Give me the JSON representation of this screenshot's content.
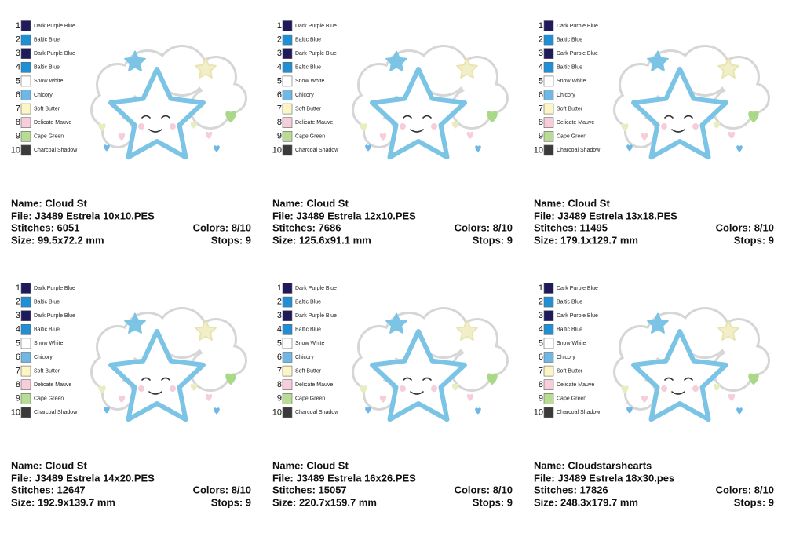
{
  "palette": [
    {
      "number": 1,
      "name": "Dark Purple Blue",
      "color": "#1f1a5c"
    },
    {
      "number": 2,
      "name": "Baltic Blue",
      "color": "#1f8fd6"
    },
    {
      "number": 3,
      "name": "Dark Purple Blue",
      "color": "#1f1a5c"
    },
    {
      "number": 4,
      "name": "Baltic Blue",
      "color": "#1f8fd6"
    },
    {
      "number": 5,
      "name": "Snow White",
      "color": "#ffffff"
    },
    {
      "number": 6,
      "name": "Chicory",
      "color": "#6fb8e6"
    },
    {
      "number": 7,
      "name": "Soft Butter",
      "color": "#fbf6c4"
    },
    {
      "number": 8,
      "name": "Delicate Mauve",
      "color": "#f6cdd8"
    },
    {
      "number": 9,
      "name": "Cape Green",
      "color": "#b8dc94"
    },
    {
      "number": 10,
      "name": "Charcoal Shadow",
      "color": "#3a3a3a"
    }
  ],
  "panels": [
    {
      "name": "Name: Cloud St",
      "file": "File: J3489 Estrela 10x10.PES",
      "stitches": "Stitches: 6051",
      "colors": "Colors: 8/10",
      "size": "Size: 99.5x72.2 mm",
      "stops": "Stops: 9"
    },
    {
      "name": "Name: Cloud St",
      "file": "File: J3489 Estrela 12x10.PES",
      "stitches": "Stitches: 7686",
      "colors": "Colors: 8/10",
      "size": "Size: 125.6x91.1 mm",
      "stops": "Stops: 9"
    },
    {
      "name": "Name: Cloud St",
      "file": "File: J3489 Estrela 13x18.PES",
      "stitches": "Stitches: 11495",
      "colors": "Colors: 8/10",
      "size": "Size: 179.1x129.7 mm",
      "stops": "Stops: 9"
    },
    {
      "name": "Name: Cloud St",
      "file": "File: J3489 Estrela 14x20.PES",
      "stitches": "Stitches: 12647",
      "colors": "Colors: 8/10",
      "size": "Size: 192.9x139.7 mm",
      "stops": "Stops: 9"
    },
    {
      "name": "Name: Cloud St",
      "file": "File: J3489 Estrela 16x26.PES",
      "stitches": "Stitches: 15057",
      "colors": "Colors: 8/10",
      "size": "Size: 220.7x159.7 mm",
      "stops": "Stops: 9"
    },
    {
      "name": "Name: Cloudstarshearts",
      "file": "File: J3489 Estrela 18x30.pes",
      "stitches": "Stitches: 17826",
      "colors": "Colors: 8/10",
      "size": "Size: 248.3x179.7 mm",
      "stops": "Stops: 9"
    }
  ]
}
